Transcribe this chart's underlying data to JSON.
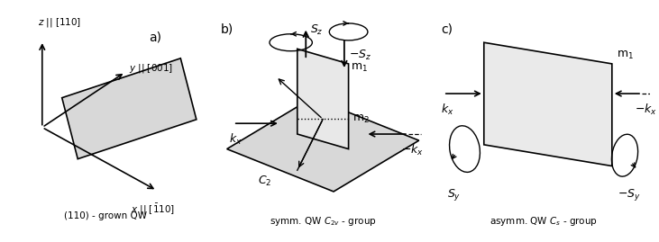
{
  "bg_color": "#ffffff",
  "plate_color": "#d8d8d8",
  "plate_edge": "#000000",
  "bottom_label_a": "(110) - grown QW",
  "bottom_label_b": "symm. QW $C_{2v}$ - group",
  "bottom_label_c": "asymm. QW $C_s$ - group"
}
